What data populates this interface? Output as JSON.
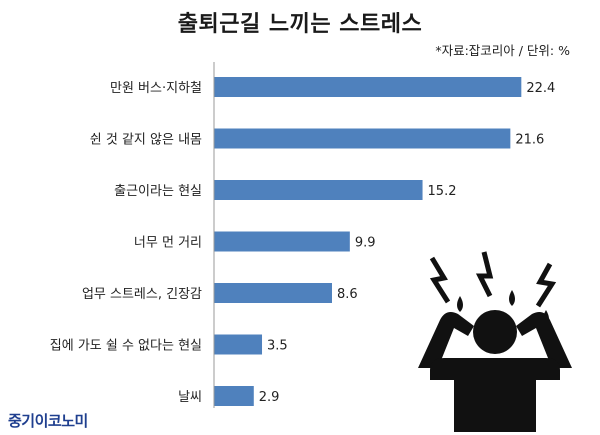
{
  "header": {
    "title": "출퇴근길 느끼는 스트레스",
    "source_note": "*자료:잡코리아 / 단위: %"
  },
  "brand": {
    "name": "중기이코노미"
  },
  "figure": {
    "icon": "stressed-person-icon"
  },
  "chart_data": {
    "type": "bar",
    "orientation": "horizontal",
    "categories": [
      "만원 버스·지하철",
      "쉰 것 같지 않은 내몸",
      "출근이라는 현실",
      "너무 먼 거리",
      "업무 스트레스, 긴장감",
      "집에 가도 쉴 수 없다는 현실",
      "날씨"
    ],
    "values": [
      22.4,
      21.6,
      15.2,
      9.9,
      8.6,
      3.5,
      2.9
    ],
    "value_labels": [
      "22.4",
      "21.6",
      "15.2",
      "9.9",
      "8.6",
      "3.5",
      "2.9"
    ],
    "title": "출퇴근길 느끼는 스트레스",
    "xlim": [
      0,
      25
    ],
    "bar_color": "#4f81bd",
    "grid": false,
    "legend": "none"
  }
}
